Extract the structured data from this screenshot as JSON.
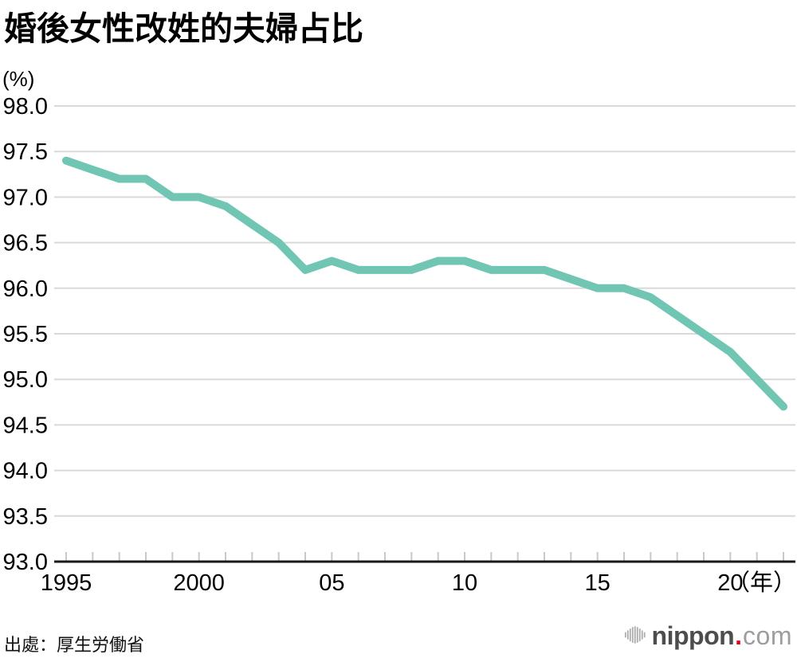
{
  "title": "婚後女性改姓的夫婦占比",
  "y_axis_unit": "(%)",
  "source": "出處：厚生労働省",
  "logo": {
    "text_main": "nippon",
    "dot": ".",
    "text_suffix": "com",
    "colors": {
      "icon": "#ababab",
      "main": "#4d4d4d",
      "dot": "#e60012",
      "suffix": "#9d9d9d"
    }
  },
  "chart_data": {
    "type": "line",
    "title": "婚後女性改姓的夫婦占比",
    "xlabel": "",
    "ylabel": "(%)",
    "ylim": [
      93.0,
      98.0
    ],
    "ytick_step": 0.5,
    "grid": true,
    "legend": "none",
    "line_color": "#70c5b3",
    "x": [
      1995,
      1996,
      1997,
      1998,
      1999,
      2000,
      2001,
      2002,
      2003,
      2004,
      2005,
      2006,
      2007,
      2008,
      2009,
      2010,
      2011,
      2012,
      2013,
      2014,
      2015,
      2016,
      2017,
      2018,
      2019,
      2020,
      2021,
      2022
    ],
    "values": [
      97.4,
      97.3,
      97.2,
      97.2,
      97.0,
      97.0,
      96.9,
      96.7,
      96.5,
      96.2,
      96.3,
      96.2,
      96.2,
      96.2,
      96.3,
      96.3,
      96.2,
      96.2,
      96.2,
      96.1,
      96.0,
      96.0,
      95.9,
      95.7,
      95.5,
      95.3,
      95.0,
      94.7
    ],
    "x_tick_labels": [
      {
        "year": 1995,
        "label": "1995"
      },
      {
        "year": 2000,
        "label": "2000"
      },
      {
        "year": 2005,
        "label": "05"
      },
      {
        "year": 2010,
        "label": "10"
      },
      {
        "year": 2015,
        "label": "15"
      },
      {
        "year": 2020,
        "label": "20"
      }
    ],
    "x_axis_suffix": "（年）"
  }
}
